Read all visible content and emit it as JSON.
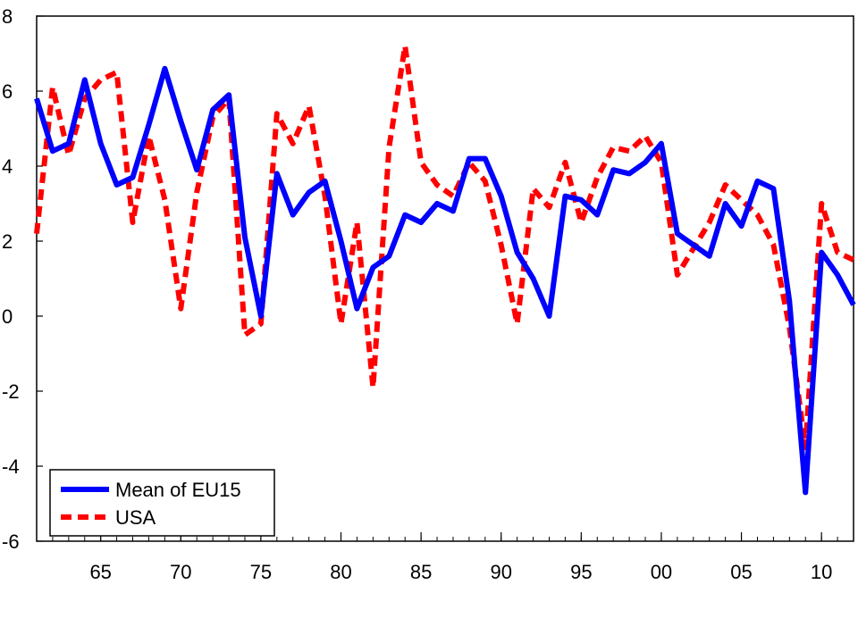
{
  "chart_data": {
    "type": "line",
    "title": "",
    "xlabel": "",
    "ylabel": "",
    "x": [
      1961,
      1962,
      1963,
      1964,
      1965,
      1966,
      1967,
      1968,
      1969,
      1970,
      1971,
      1972,
      1973,
      1974,
      1975,
      1976,
      1977,
      1978,
      1979,
      1980,
      1981,
      1982,
      1983,
      1984,
      1985,
      1986,
      1987,
      1988,
      1989,
      1990,
      1991,
      1992,
      1993,
      1994,
      1995,
      1996,
      1997,
      1998,
      1999,
      2000,
      2001,
      2002,
      2003,
      2004,
      2005,
      2006,
      2007,
      2008,
      2009,
      2010,
      2011,
      2012
    ],
    "xlim": [
      1961,
      2012
    ],
    "ylim": [
      -6,
      8
    ],
    "x_ticks": [
      1965,
      1970,
      1975,
      1980,
      1985,
      1990,
      1995,
      2000,
      2005,
      2010
    ],
    "x_tick_labels": [
      "65",
      "70",
      "75",
      "80",
      "85",
      "90",
      "95",
      "00",
      "05",
      "10"
    ],
    "y_ticks": [
      -6,
      -4,
      -2,
      0,
      2,
      4,
      6,
      8
    ],
    "y_tick_labels": [
      "-6",
      "-4",
      "-2",
      "0",
      "2",
      "4",
      "6",
      "8"
    ],
    "grid": false,
    "legend_position": "bottom-left",
    "series": [
      {
        "name": "Mean of EU15",
        "color": "#0000ff",
        "style": "solid",
        "values": [
          5.8,
          4.4,
          4.6,
          6.3,
          4.6,
          3.5,
          3.7,
          5.1,
          6.6,
          5.2,
          3.9,
          5.5,
          5.9,
          2.1,
          0.0,
          3.8,
          2.7,
          3.3,
          3.6,
          2.0,
          0.2,
          1.3,
          1.6,
          2.7,
          2.5,
          3.0,
          2.8,
          4.2,
          4.2,
          3.2,
          1.7,
          1.0,
          0.0,
          3.2,
          3.1,
          2.7,
          3.9,
          3.8,
          4.1,
          4.6,
          2.2,
          1.9,
          1.6,
          3.0,
          2.4,
          3.6,
          3.4,
          0.4,
          -4.7,
          1.7,
          1.1,
          0.3
        ]
      },
      {
        "name": "USA",
        "color": "#ff0000",
        "style": "dashed",
        "values": [
          2.2,
          6.1,
          4.3,
          5.8,
          6.3,
          6.5,
          2.5,
          4.8,
          3.1,
          0.2,
          3.3,
          5.3,
          5.8,
          -0.5,
          -0.2,
          5.4,
          4.6,
          5.6,
          3.2,
          -0.2,
          2.5,
          -1.9,
          4.5,
          7.2,
          4.1,
          3.5,
          3.2,
          4.1,
          3.6,
          1.9,
          -0.2,
          3.4,
          2.9,
          4.1,
          2.5,
          3.7,
          4.5,
          4.4,
          4.8,
          4.1,
          1.1,
          1.8,
          2.5,
          3.5,
          3.1,
          2.7,
          1.9,
          -0.3,
          -3.5,
          3.0,
          1.7,
          1.5
        ]
      }
    ]
  }
}
